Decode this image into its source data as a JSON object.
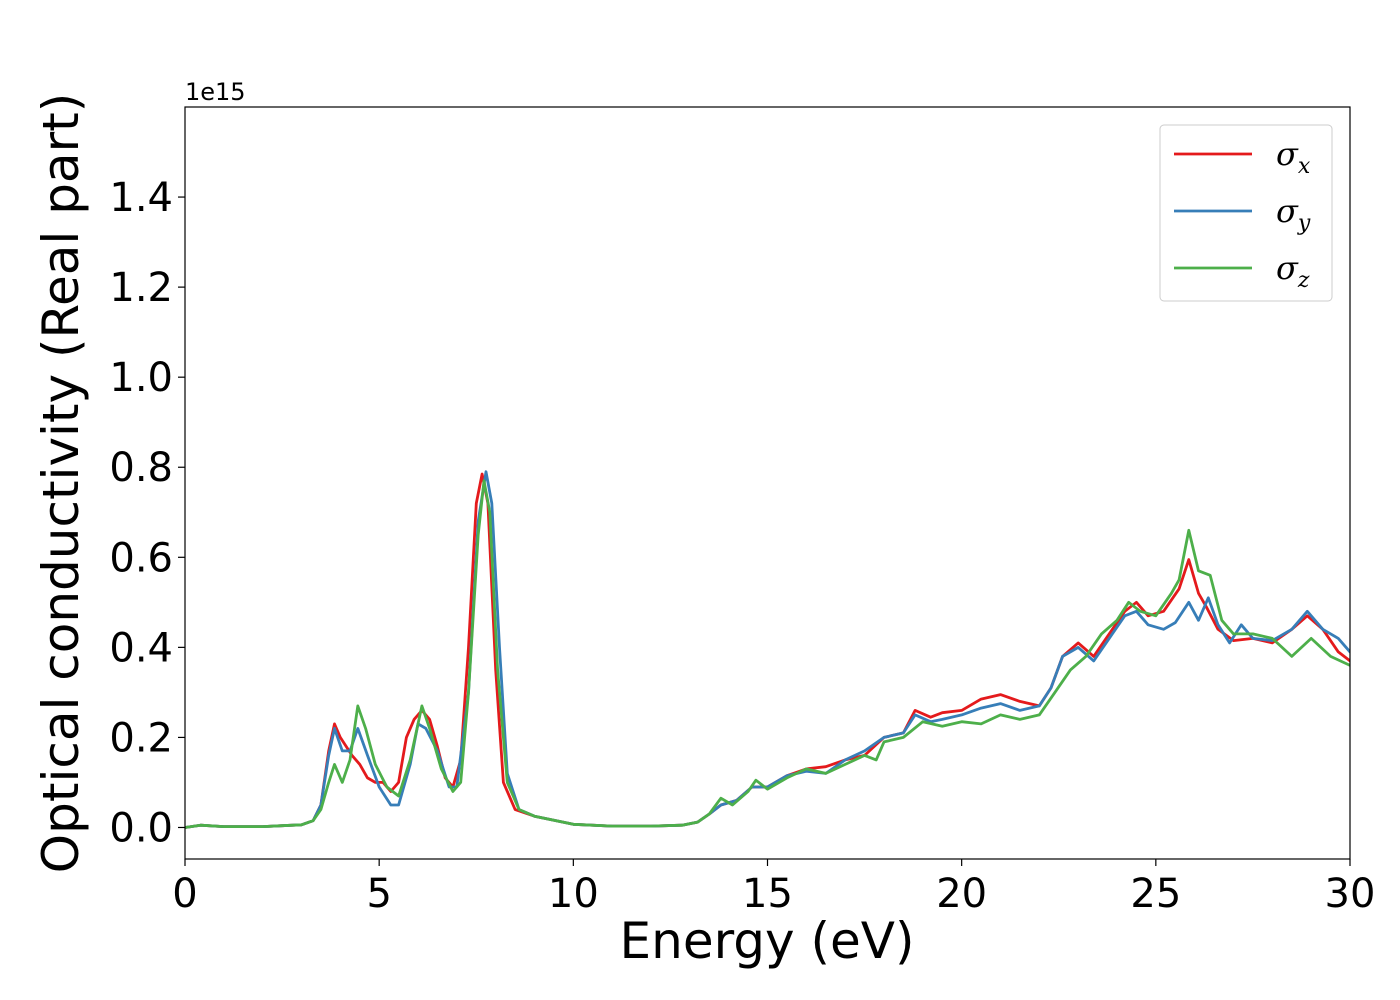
{
  "chart_data": {
    "type": "line",
    "title": "",
    "xlabel": "Energy (eV)",
    "ylabel": "Optical conductivity (Real part)",
    "y_offset_text": "1e15",
    "xlim": [
      0,
      30
    ],
    "ylim": [
      -0.07,
      1.6
    ],
    "x_ticks": [
      0,
      5,
      10,
      15,
      20,
      25,
      30
    ],
    "x_tick_labels": [
      "0",
      "5",
      "10",
      "15",
      "20",
      "25",
      "30"
    ],
    "y_ticks": [
      0.0,
      0.2,
      0.4,
      0.6,
      0.8,
      1.0,
      1.2,
      1.4
    ],
    "y_tick_labels": [
      "0.0",
      "0.2",
      "0.4",
      "0.6",
      "0.8",
      "1.0",
      "1.2",
      "1.4"
    ],
    "grid": false,
    "legend_position": "top-right",
    "series": [
      {
        "name": "σx",
        "legend_symbol": "σ",
        "legend_subscript": "x",
        "color": "#e41a1c",
        "points": [
          [
            0,
            0
          ],
          [
            0.4,
            0.005
          ],
          [
            1,
            0.002
          ],
          [
            2,
            0.002
          ],
          [
            2.5,
            0.004
          ],
          [
            3,
            0.006
          ],
          [
            3.3,
            0.015
          ],
          [
            3.5,
            0.05
          ],
          [
            3.7,
            0.17
          ],
          [
            3.85,
            0.23
          ],
          [
            4.0,
            0.2
          ],
          [
            4.3,
            0.16
          ],
          [
            4.5,
            0.14
          ],
          [
            4.7,
            0.11
          ],
          [
            4.9,
            0.1
          ],
          [
            5.1,
            0.1
          ],
          [
            5.3,
            0.08
          ],
          [
            5.5,
            0.1
          ],
          [
            5.7,
            0.2
          ],
          [
            5.9,
            0.24
          ],
          [
            6.1,
            0.26
          ],
          [
            6.3,
            0.24
          ],
          [
            6.5,
            0.18
          ],
          [
            6.7,
            0.11
          ],
          [
            6.9,
            0.09
          ],
          [
            7.1,
            0.15
          ],
          [
            7.3,
            0.4
          ],
          [
            7.5,
            0.72
          ],
          [
            7.65,
            0.785
          ],
          [
            7.8,
            0.72
          ],
          [
            8.0,
            0.35
          ],
          [
            8.2,
            0.1
          ],
          [
            8.5,
            0.04
          ],
          [
            9,
            0.025
          ],
          [
            10,
            0.007
          ],
          [
            11,
            0.003
          ],
          [
            12,
            0.003
          ],
          [
            12.8,
            0.005
          ],
          [
            13.2,
            0.012
          ],
          [
            13.5,
            0.03
          ],
          [
            13.8,
            0.05
          ],
          [
            14.2,
            0.06
          ],
          [
            14.6,
            0.09
          ],
          [
            15,
            0.09
          ],
          [
            15.5,
            0.115
          ],
          [
            16,
            0.13
          ],
          [
            16.5,
            0.135
          ],
          [
            17,
            0.15
          ],
          [
            17.5,
            0.16
          ],
          [
            18,
            0.2
          ],
          [
            18.5,
            0.21
          ],
          [
            18.8,
            0.26
          ],
          [
            19.2,
            0.245
          ],
          [
            19.5,
            0.255
          ],
          [
            20,
            0.26
          ],
          [
            20.5,
            0.285
          ],
          [
            21,
            0.295
          ],
          [
            21.5,
            0.28
          ],
          [
            22,
            0.27
          ],
          [
            22.3,
            0.31
          ],
          [
            22.6,
            0.38
          ],
          [
            23,
            0.41
          ],
          [
            23.4,
            0.38
          ],
          [
            23.8,
            0.43
          ],
          [
            24.2,
            0.48
          ],
          [
            24.5,
            0.5
          ],
          [
            24.8,
            0.47
          ],
          [
            25.2,
            0.48
          ],
          [
            25.6,
            0.53
          ],
          [
            25.85,
            0.595
          ],
          [
            26.1,
            0.52
          ],
          [
            26.3,
            0.49
          ],
          [
            26.6,
            0.44
          ],
          [
            27,
            0.415
          ],
          [
            27.5,
            0.42
          ],
          [
            28,
            0.41
          ],
          [
            28.5,
            0.44
          ],
          [
            28.9,
            0.47
          ],
          [
            29.3,
            0.44
          ],
          [
            29.7,
            0.39
          ],
          [
            30,
            0.37
          ]
        ]
      },
      {
        "name": "σy",
        "legend_symbol": "σ",
        "legend_subscript": "y",
        "color": "#377eb8",
        "points": [
          [
            0,
            0
          ],
          [
            0.4,
            0.005
          ],
          [
            1,
            0.002
          ],
          [
            2,
            0.002
          ],
          [
            2.5,
            0.004
          ],
          [
            3,
            0.006
          ],
          [
            3.3,
            0.015
          ],
          [
            3.5,
            0.05
          ],
          [
            3.7,
            0.16
          ],
          [
            3.85,
            0.22
          ],
          [
            4.05,
            0.17
          ],
          [
            4.25,
            0.17
          ],
          [
            4.45,
            0.22
          ],
          [
            4.7,
            0.16
          ],
          [
            5.0,
            0.09
          ],
          [
            5.3,
            0.05
          ],
          [
            5.5,
            0.05
          ],
          [
            5.8,
            0.14
          ],
          [
            6.0,
            0.23
          ],
          [
            6.2,
            0.22
          ],
          [
            6.5,
            0.17
          ],
          [
            6.8,
            0.09
          ],
          [
            7.0,
            0.09
          ],
          [
            7.3,
            0.3
          ],
          [
            7.55,
            0.68
          ],
          [
            7.75,
            0.79
          ],
          [
            7.9,
            0.72
          ],
          [
            8.1,
            0.4
          ],
          [
            8.3,
            0.12
          ],
          [
            8.6,
            0.04
          ],
          [
            9,
            0.025
          ],
          [
            10,
            0.007
          ],
          [
            11,
            0.003
          ],
          [
            12,
            0.003
          ],
          [
            12.8,
            0.005
          ],
          [
            13.2,
            0.012
          ],
          [
            13.5,
            0.03
          ],
          [
            13.8,
            0.05
          ],
          [
            14.2,
            0.06
          ],
          [
            14.6,
            0.09
          ],
          [
            15,
            0.09
          ],
          [
            15.5,
            0.115
          ],
          [
            16,
            0.125
          ],
          [
            16.5,
            0.12
          ],
          [
            17,
            0.15
          ],
          [
            17.5,
            0.17
          ],
          [
            18,
            0.2
          ],
          [
            18.5,
            0.21
          ],
          [
            18.8,
            0.25
          ],
          [
            19.2,
            0.235
          ],
          [
            19.5,
            0.24
          ],
          [
            20,
            0.25
          ],
          [
            20.5,
            0.265
          ],
          [
            21,
            0.275
          ],
          [
            21.5,
            0.26
          ],
          [
            22,
            0.27
          ],
          [
            22.3,
            0.31
          ],
          [
            22.6,
            0.38
          ],
          [
            23,
            0.4
          ],
          [
            23.4,
            0.37
          ],
          [
            23.8,
            0.42
          ],
          [
            24.2,
            0.47
          ],
          [
            24.5,
            0.48
          ],
          [
            24.8,
            0.45
          ],
          [
            25.2,
            0.44
          ],
          [
            25.5,
            0.455
          ],
          [
            25.85,
            0.5
          ],
          [
            26.1,
            0.46
          ],
          [
            26.35,
            0.51
          ],
          [
            26.6,
            0.45
          ],
          [
            26.9,
            0.41
          ],
          [
            27.2,
            0.45
          ],
          [
            27.5,
            0.42
          ],
          [
            28,
            0.415
          ],
          [
            28.5,
            0.44
          ],
          [
            28.9,
            0.48
          ],
          [
            29.3,
            0.44
          ],
          [
            29.7,
            0.42
          ],
          [
            30,
            0.39
          ]
        ]
      },
      {
        "name": "σz",
        "legend_symbol": "σ",
        "legend_subscript": "z",
        "color": "#4daf4a",
        "points": [
          [
            0,
            0
          ],
          [
            0.4,
            0.005
          ],
          [
            1,
            0.002
          ],
          [
            2,
            0.002
          ],
          [
            2.5,
            0.004
          ],
          [
            3,
            0.006
          ],
          [
            3.3,
            0.015
          ],
          [
            3.5,
            0.04
          ],
          [
            3.7,
            0.1
          ],
          [
            3.85,
            0.14
          ],
          [
            4.05,
            0.1
          ],
          [
            4.25,
            0.15
          ],
          [
            4.45,
            0.27
          ],
          [
            4.65,
            0.22
          ],
          [
            4.9,
            0.14
          ],
          [
            5.2,
            0.09
          ],
          [
            5.5,
            0.07
          ],
          [
            5.8,
            0.15
          ],
          [
            6.1,
            0.27
          ],
          [
            6.3,
            0.22
          ],
          [
            6.6,
            0.13
          ],
          [
            6.9,
            0.08
          ],
          [
            7.1,
            0.1
          ],
          [
            7.3,
            0.3
          ],
          [
            7.55,
            0.65
          ],
          [
            7.7,
            0.77
          ],
          [
            7.85,
            0.7
          ],
          [
            8.05,
            0.35
          ],
          [
            8.3,
            0.1
          ],
          [
            8.6,
            0.04
          ],
          [
            9,
            0.025
          ],
          [
            10,
            0.007
          ],
          [
            11,
            0.003
          ],
          [
            12,
            0.003
          ],
          [
            12.8,
            0.005
          ],
          [
            13.2,
            0.012
          ],
          [
            13.5,
            0.03
          ],
          [
            13.8,
            0.065
          ],
          [
            14.1,
            0.05
          ],
          [
            14.5,
            0.08
          ],
          [
            14.7,
            0.105
          ],
          [
            15,
            0.085
          ],
          [
            15.5,
            0.11
          ],
          [
            16,
            0.13
          ],
          [
            16.5,
            0.12
          ],
          [
            17,
            0.14
          ],
          [
            17.5,
            0.16
          ],
          [
            17.8,
            0.15
          ],
          [
            18,
            0.19
          ],
          [
            18.5,
            0.2
          ],
          [
            19,
            0.235
          ],
          [
            19.5,
            0.225
          ],
          [
            20,
            0.235
          ],
          [
            20.5,
            0.23
          ],
          [
            21,
            0.25
          ],
          [
            21.5,
            0.24
          ],
          [
            22,
            0.25
          ],
          [
            22.4,
            0.3
          ],
          [
            22.8,
            0.35
          ],
          [
            23.2,
            0.38
          ],
          [
            23.6,
            0.43
          ],
          [
            24,
            0.46
          ],
          [
            24.3,
            0.5
          ],
          [
            24.6,
            0.48
          ],
          [
            25,
            0.47
          ],
          [
            25.4,
            0.52
          ],
          [
            25.6,
            0.55
          ],
          [
            25.85,
            0.66
          ],
          [
            26.1,
            0.57
          ],
          [
            26.4,
            0.56
          ],
          [
            26.7,
            0.46
          ],
          [
            27,
            0.43
          ],
          [
            27.5,
            0.43
          ],
          [
            28,
            0.42
          ],
          [
            28.5,
            0.38
          ],
          [
            29,
            0.42
          ],
          [
            29.5,
            0.38
          ],
          [
            30,
            0.36
          ]
        ]
      }
    ]
  }
}
